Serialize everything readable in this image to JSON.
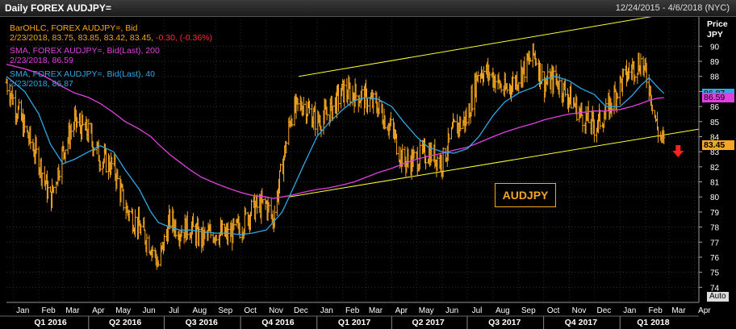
{
  "header": {
    "title": "Daily FOREX AUDJPY=",
    "date_range": "12/24/2015 - 4/6/2018 (NYC)"
  },
  "legend": {
    "ohlc_name": "BarOHLC, FOREX AUDJPY=, Bid",
    "ohlc_values": "2/23/2018, 83.75, 83.85, 83.42, 83.45, ",
    "ohlc_change": "-0.30, (-0.36%)",
    "sma200_name": "SMA, FOREX AUDJPY=, Bid(Last), 200",
    "sma200_value": "2/23/2018, 86.59",
    "sma40_name": "SMA, FOREX AUDJPY=, Bid(Last), 40",
    "sma40_value": "2/23/2018, 86.87"
  },
  "annotation_label": "AUDJPY",
  "y_axis_title_1": "Price",
  "y_axis_title_2": "JPY",
  "auto_label": "Auto",
  "colors": {
    "price": "#f5a623",
    "sma200": "#e040e0",
    "sma40": "#2ea8e6",
    "channel": "#ffff33",
    "down_arrow": "#ff2020"
  },
  "icons": {
    "down_arrow": "down-arrow-icon"
  },
  "chart_data": {
    "type": "line",
    "x": [
      "2015-12-24",
      "2016-01-15",
      "2016-02-01",
      "2016-02-15",
      "2016-03-01",
      "2016-03-15",
      "2016-04-01",
      "2016-04-15",
      "2016-05-01",
      "2016-05-15",
      "2016-06-01",
      "2016-06-15",
      "2016-06-24",
      "2016-07-08",
      "2016-07-20",
      "2016-08-01",
      "2016-08-15",
      "2016-09-01",
      "2016-09-15",
      "2016-10-01",
      "2016-10-15",
      "2016-11-01",
      "2016-11-09",
      "2016-11-20",
      "2016-12-01",
      "2016-12-15",
      "2017-01-01",
      "2017-01-15",
      "2017-02-01",
      "2017-02-15",
      "2017-03-01",
      "2017-03-15",
      "2017-04-01",
      "2017-04-15",
      "2017-05-01",
      "2017-05-15",
      "2017-06-01",
      "2017-06-15",
      "2017-07-01",
      "2017-07-15",
      "2017-08-01",
      "2017-08-15",
      "2017-09-01",
      "2017-09-20",
      "2017-10-01",
      "2017-10-15",
      "2017-11-01",
      "2017-11-15",
      "2017-12-01",
      "2017-12-15",
      "2018-01-01",
      "2018-01-15",
      "2018-01-26",
      "2018-02-05",
      "2018-02-15",
      "2018-02-23"
    ],
    "series": [
      {
        "name": "BarOHLC, FOREX AUDJPY=, Bid",
        "values": [
          87.6,
          84.5,
          82.4,
          79.8,
          83.0,
          85.0,
          84.2,
          82.6,
          82.0,
          79.3,
          78.0,
          76.8,
          75.5,
          78.5,
          77.8,
          78.0,
          77.2,
          77.7,
          77.4,
          78.0,
          79.2,
          79.5,
          78.5,
          82.0,
          85.5,
          86.2,
          85.0,
          85.6,
          87.0,
          86.8,
          86.5,
          86.0,
          84.5,
          82.3,
          82.5,
          83.0,
          82.3,
          84.5,
          85.2,
          88.5,
          88.0,
          87.0,
          88.0,
          89.5,
          87.5,
          87.8,
          86.6,
          85.5,
          84.7,
          85.5,
          87.5,
          88.5,
          89.0,
          87.5,
          84.5,
          83.45
        ]
      },
      {
        "name": "SMA, FOREX AUDJPY=, Bid(Last), 200",
        "values": [
          88.8,
          88.5,
          88.2,
          87.8,
          87.3,
          86.9,
          86.6,
          86.2,
          85.6,
          85.0,
          84.5,
          84.0,
          83.5,
          82.8,
          82.3,
          81.8,
          81.3,
          80.9,
          80.6,
          80.3,
          80.1,
          80.0,
          79.9,
          80.0,
          80.1,
          80.3,
          80.5,
          80.6,
          80.8,
          81.0,
          81.3,
          81.6,
          81.9,
          82.2,
          82.5,
          82.7,
          82.9,
          83.1,
          83.3,
          83.6,
          84.0,
          84.3,
          84.6,
          84.9,
          85.1,
          85.3,
          85.5,
          85.6,
          85.7,
          85.7,
          85.8,
          86.0,
          86.2,
          86.4,
          86.55,
          86.59
        ]
      },
      {
        "name": "SMA, FOREX AUDJPY=, Bid(Last), 40",
        "values": [
          88.0,
          87.0,
          85.5,
          83.5,
          82.2,
          82.5,
          83.0,
          83.4,
          83.0,
          81.8,
          80.5,
          79.0,
          78.3,
          78.0,
          77.8,
          77.8,
          77.7,
          77.6,
          77.6,
          77.5,
          77.6,
          77.8,
          78.3,
          79.0,
          80.3,
          82.0,
          84.0,
          84.9,
          85.8,
          86.4,
          86.6,
          86.5,
          86.0,
          85.0,
          84.0,
          83.3,
          83.0,
          82.9,
          83.2,
          84.0,
          85.4,
          86.3,
          86.9,
          87.3,
          87.8,
          88.0,
          87.7,
          87.2,
          86.8,
          86.0,
          86.0,
          86.7,
          87.4,
          87.9,
          87.3,
          86.87
        ]
      }
    ],
    "channel_upper": {
      "x": [
        "2016-12-10",
        "2018-04-06"
      ],
      "y": [
        88.0,
        92.5
      ]
    },
    "channel_lower": {
      "x": [
        "2016-11-28",
        "2018-04-06"
      ],
      "y": [
        80.0,
        84.5
      ]
    },
    "last_values": {
      "price": 83.45,
      "sma200": 86.59,
      "sma40": 86.87
    },
    "ylim": [
      73,
      92
    ],
    "yticks": [
      74,
      75,
      76,
      77,
      78,
      79,
      80,
      81,
      82,
      83,
      84,
      85,
      86,
      87,
      88,
      89,
      90
    ],
    "months": [
      {
        "label": "Jan",
        "date": "2016-01-01"
      },
      {
        "label": "Feb",
        "date": "2016-02-01"
      },
      {
        "label": "Mar",
        "date": "2016-03-01"
      },
      {
        "label": "Apr",
        "date": "2016-04-01"
      },
      {
        "label": "May",
        "date": "2016-05-01"
      },
      {
        "label": "Jun",
        "date": "2016-06-01"
      },
      {
        "label": "Jul",
        "date": "2016-07-01"
      },
      {
        "label": "Aug",
        "date": "2016-08-01"
      },
      {
        "label": "Sep",
        "date": "2016-09-01"
      },
      {
        "label": "Oct",
        "date": "2016-10-01"
      },
      {
        "label": "Nov",
        "date": "2016-11-01"
      },
      {
        "label": "Dec",
        "date": "2016-12-01"
      },
      {
        "label": "Jan",
        "date": "2017-01-01"
      },
      {
        "label": "Feb",
        "date": "2017-02-01"
      },
      {
        "label": "Mar",
        "date": "2017-03-01"
      },
      {
        "label": "Apr",
        "date": "2017-04-01"
      },
      {
        "label": "May",
        "date": "2017-05-01"
      },
      {
        "label": "Jun",
        "date": "2017-06-01"
      },
      {
        "label": "Jul",
        "date": "2017-07-01"
      },
      {
        "label": "Aug",
        "date": "2017-08-01"
      },
      {
        "label": "Sep",
        "date": "2017-09-01"
      },
      {
        "label": "Oct",
        "date": "2017-10-01"
      },
      {
        "label": "Nov",
        "date": "2017-11-01"
      },
      {
        "label": "Dec",
        "date": "2017-12-01"
      },
      {
        "label": "Jan",
        "date": "2018-01-01"
      },
      {
        "label": "Feb",
        "date": "2018-02-01"
      },
      {
        "label": "Mar",
        "date": "2018-03-01"
      },
      {
        "label": "Apr",
        "date": "2018-04-01"
      }
    ],
    "quarters": [
      {
        "label": "Q1 2016",
        "date": "2016-02-15"
      },
      {
        "label": "Q2 2016",
        "date": "2016-05-15"
      },
      {
        "label": "Q3 2016",
        "date": "2016-08-15"
      },
      {
        "label": "Q4 2016",
        "date": "2016-11-15"
      },
      {
        "label": "Q1 2017",
        "date": "2017-02-15"
      },
      {
        "label": "Q2 2017",
        "date": "2017-05-15"
      },
      {
        "label": "Q3 2017",
        "date": "2017-08-15"
      },
      {
        "label": "Q4 2017",
        "date": "2017-11-15"
      },
      {
        "label": "Q1 2018",
        "date": "2018-02-10"
      }
    ],
    "quarter_boundaries": [
      "2016-04-01",
      "2016-07-01",
      "2016-10-01",
      "2017-01-01",
      "2017-04-01",
      "2017-07-01",
      "2017-10-01",
      "2018-01-01"
    ],
    "x_range": [
      "2015-12-24",
      "2018-04-06"
    ]
  }
}
